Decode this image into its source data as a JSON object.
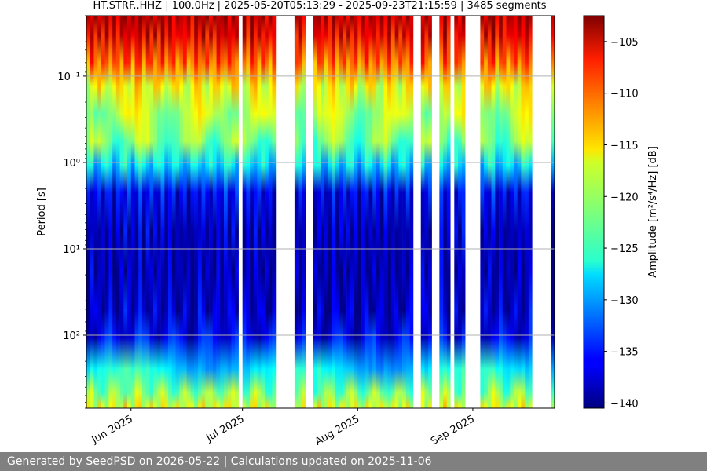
{
  "chart_data": {
    "type": "heatmap",
    "title": "HT.STRF..HHZ | 100.0Hz | 2025-05-20T05:13:29 - 2025-09-23T21:15:59 | 3485 segments",
    "ylabel": "Period [s]",
    "yscale": "log",
    "ylim": [
      0.02,
      700
    ],
    "y_invert": true,
    "y_ticks": [
      {
        "value": 0.1,
        "label": "10⁻¹"
      },
      {
        "value": 1,
        "label": "10⁰"
      },
      {
        "value": 10,
        "label": "10¹"
      },
      {
        "value": 100,
        "label": "10²"
      }
    ],
    "xlim": [
      "2025-05-20",
      "2025-09-23"
    ],
    "x_ticks": [
      {
        "value": "2025-06-01",
        "label": "Jun 2025"
      },
      {
        "value": "2025-07-01",
        "label": "Jul 2025"
      },
      {
        "value": "2025-08-01",
        "label": "Aug 2025"
      },
      {
        "value": "2025-09-01",
        "label": "Sep 2025"
      }
    ],
    "grid": true,
    "colorbar": {
      "label": "Amplitude [m²/s⁴/Hz] [dB]",
      "colormap": "jet",
      "range": [
        -140.5,
        -102.5
      ],
      "ticks": [
        -105,
        -110,
        -115,
        -120,
        -125,
        -130,
        -135,
        -140
      ],
      "tick_labels": [
        "−105",
        "−110",
        "−115",
        "−120",
        "−125",
        "−130",
        "−135",
        "−140"
      ]
    },
    "data_gaps": [
      [
        "2025-06-30",
        "2025-07-01"
      ],
      [
        "2025-07-10",
        "2025-07-15"
      ],
      [
        "2025-07-18",
        "2025-07-20"
      ],
      [
        "2025-08-16",
        "2025-08-18"
      ],
      [
        "2025-08-21",
        "2025-08-23"
      ],
      [
        "2025-08-26",
        "2025-08-27"
      ],
      [
        "2025-08-30",
        "2025-09-03"
      ],
      [
        "2025-09-17",
        "2025-09-22"
      ]
    ]
  },
  "footer": {
    "text": "Generated by SeedPSD on 2026-05-22 | Calculations updated on 2025-11-06"
  }
}
